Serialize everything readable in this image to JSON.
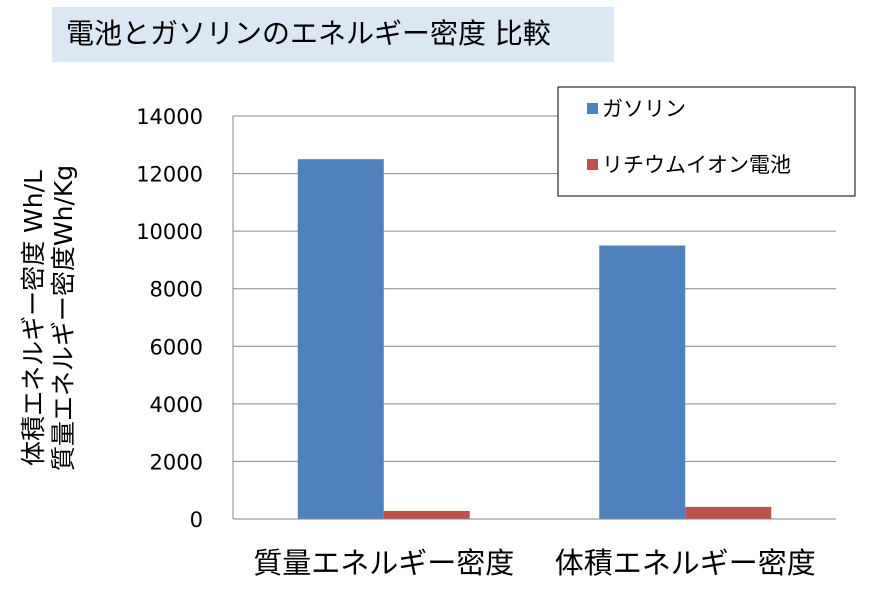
{
  "chart_data": {
    "type": "bar",
    "title": "電池とガソリンのエネルギー密度 比較",
    "ylabel": [
      "体積エネルギー密度 Wh/L",
      "質量エネルギー密度Wh/Kg"
    ],
    "xlabel": "",
    "categories": [
      "質量エネルギー密度",
      "体積エネルギー密度"
    ],
    "series": [
      {
        "name": "ガソリン",
        "values": [
          12500,
          9500
        ],
        "color": "#4f81bd"
      },
      {
        "name": "リチウムイオン電池",
        "values": [
          280,
          420
        ],
        "color": "#c0504d"
      }
    ],
    "ylim": [
      0,
      14000
    ],
    "yticks": [
      0,
      2000,
      4000,
      6000,
      8000,
      10000,
      12000,
      14000
    ],
    "grid": true,
    "legend": "top-right"
  }
}
